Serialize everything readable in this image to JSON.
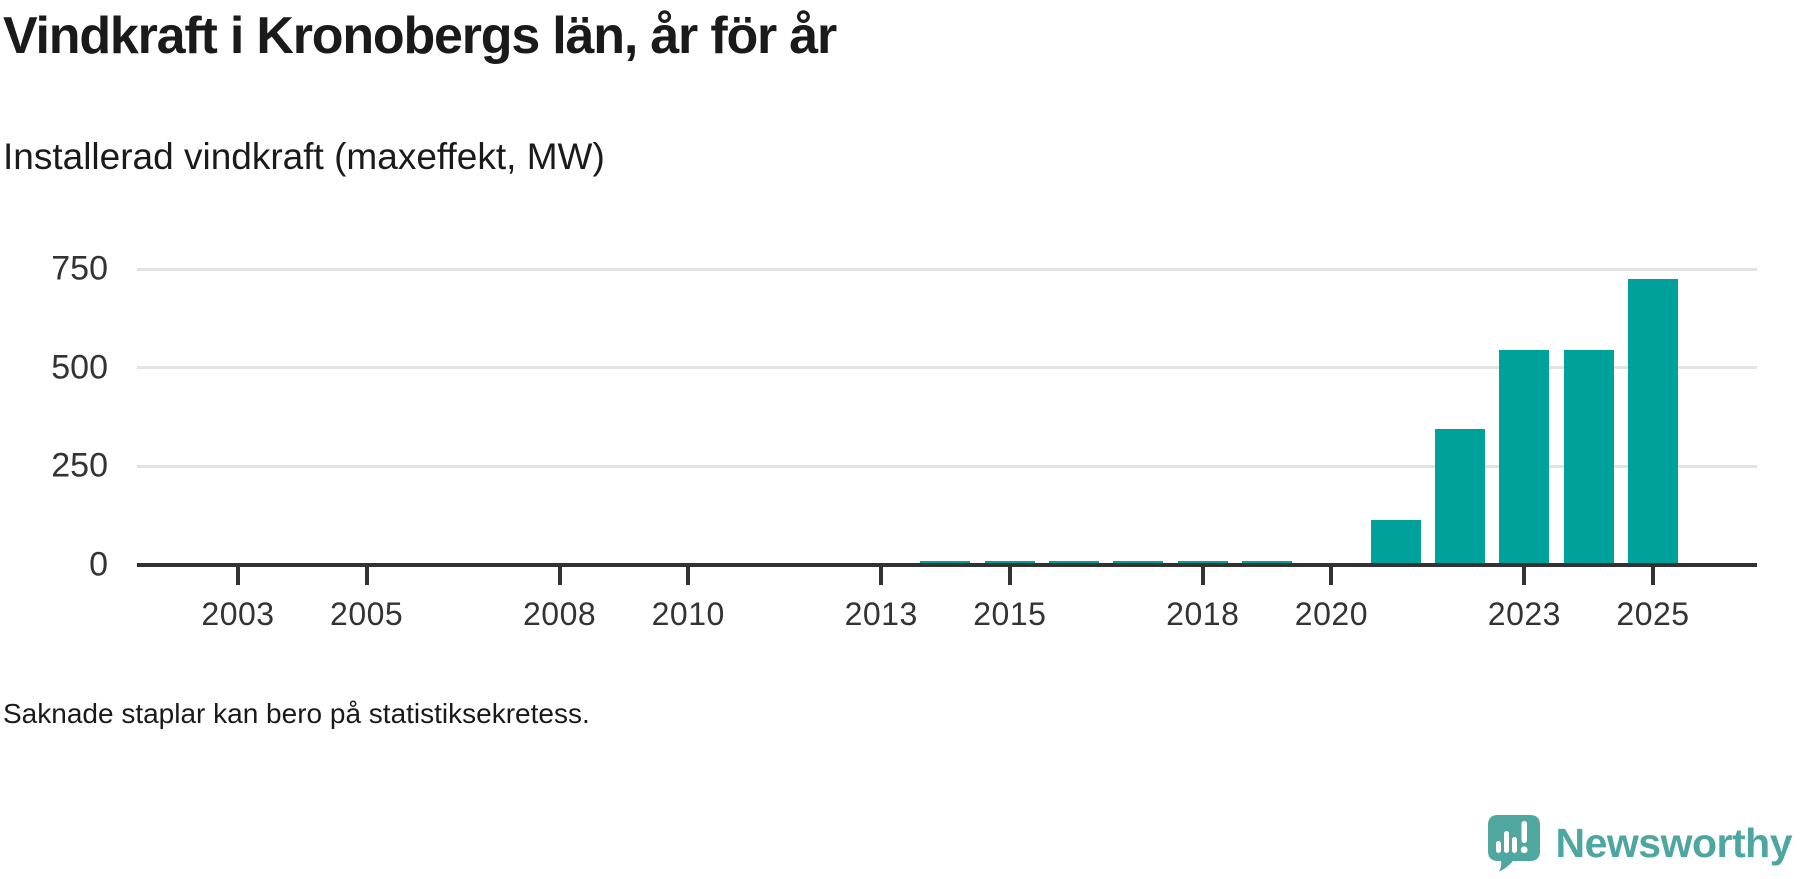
{
  "title": "Vindkraft i Kronobergs län, år för år",
  "subtitle": "Installerad vindkraft (maxeffekt, MW)",
  "footnote": "Saknade staplar kan bero på statistiksekretess.",
  "brand": {
    "name": "Newsworthy",
    "icon": "newsworthy-speech-bubble-chart-icon",
    "color": "#4da7a0"
  },
  "colors": {
    "bar": "#00a09b",
    "axis": "#323232",
    "grid": "#e3e3e3",
    "label": "#333333",
    "text": "#1a1a1a"
  },
  "chart_data": {
    "type": "bar",
    "title": "Vindkraft i Kronobergs län, år för år",
    "ylabel": "Installerad vindkraft (maxeffekt, MW)",
    "unit": "MW",
    "xlim": [
      2002,
      2026
    ],
    "ylim": [
      0,
      750
    ],
    "y_ticks": [
      0,
      250,
      500,
      750
    ],
    "x_ticks": [
      2003,
      2005,
      2008,
      2010,
      2013,
      2015,
      2018,
      2020,
      2023,
      2025
    ],
    "grid": true,
    "legend": false,
    "bars": [
      {
        "year": 2014,
        "value": 10
      },
      {
        "year": 2015,
        "value": 10
      },
      {
        "year": 2016,
        "value": 10
      },
      {
        "year": 2017,
        "value": 10
      },
      {
        "year": 2018,
        "value": 10
      },
      {
        "year": 2019,
        "value": 10
      },
      {
        "year": 2021,
        "value": 115
      },
      {
        "year": 2022,
        "value": 345
      },
      {
        "year": 2023,
        "value": 545
      },
      {
        "year": 2024,
        "value": 545
      },
      {
        "year": 2025,
        "value": 725
      }
    ],
    "years_without_bars": [
      2002,
      2003,
      2004,
      2005,
      2006,
      2007,
      2008,
      2009,
      2010,
      2011,
      2012,
      2013,
      2020
    ]
  }
}
